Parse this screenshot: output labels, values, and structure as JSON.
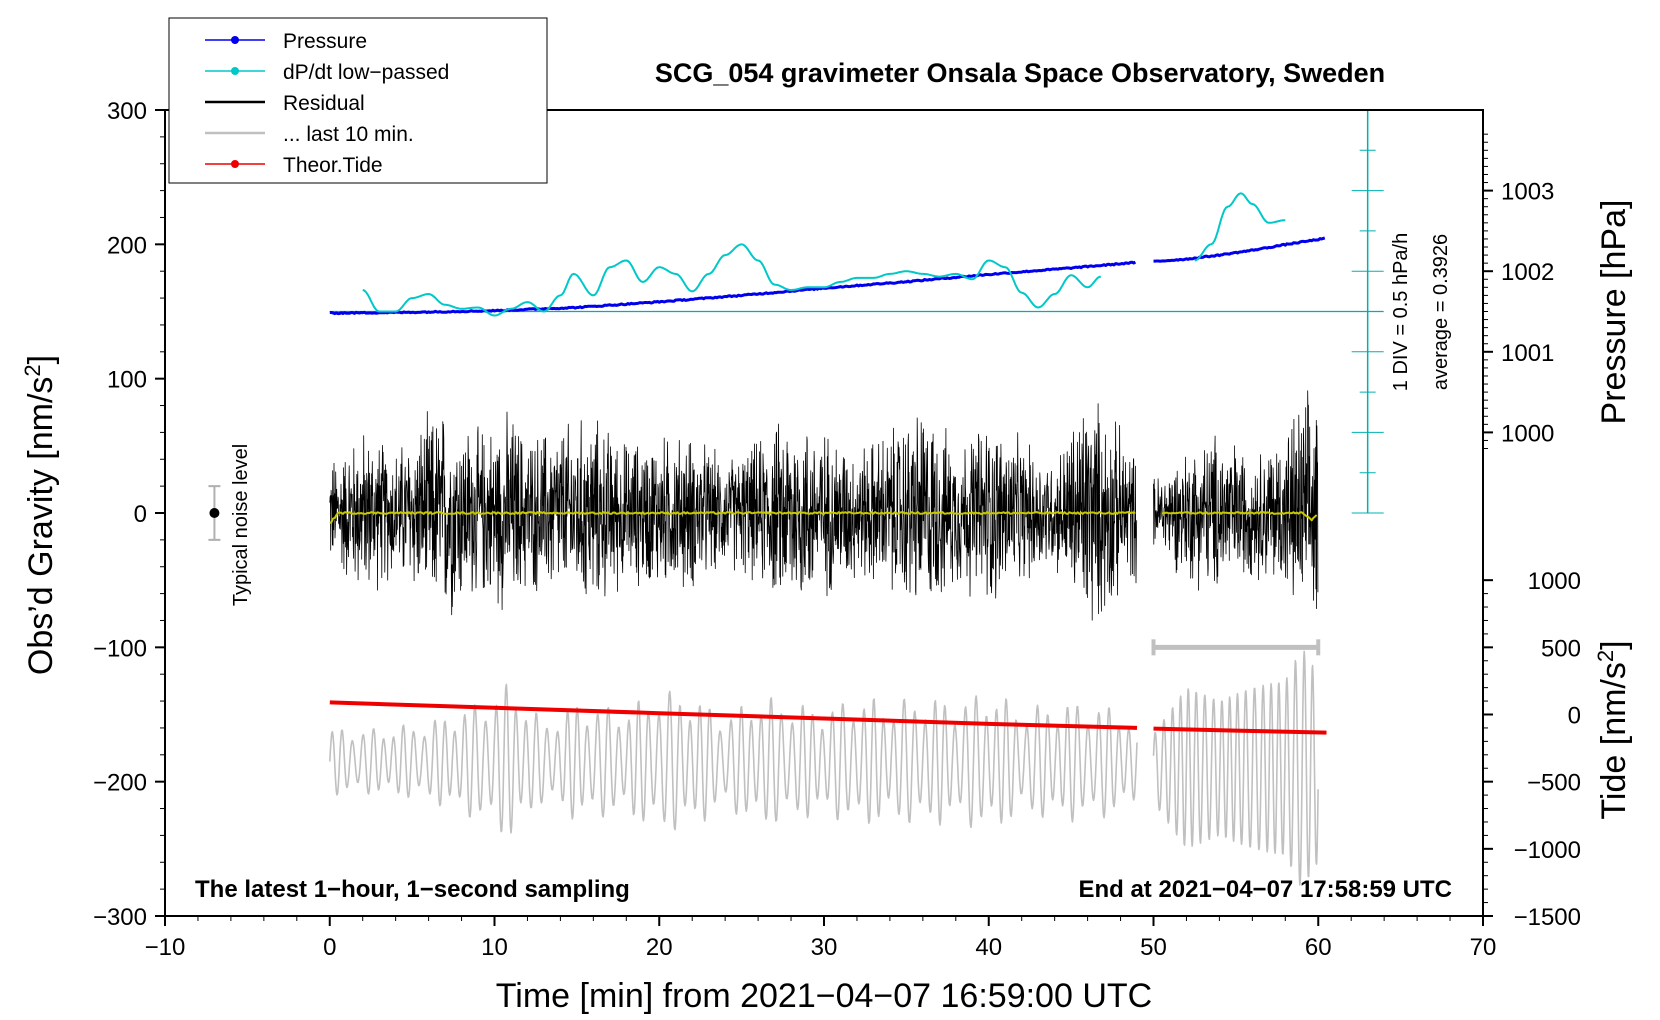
{
  "chart_data": {
    "type": "line",
    "title": "SCG_054 gravimeter Onsala Space Observatory, Sweden",
    "xlabel": "Time [min] from 2021−04−07 16:59:00 UTC",
    "ylabel_left": "Obs’d Gravity [nm/s²]",
    "ylabel_left_main": "Obs’d Gravity [nm/s",
    "ylabel_left_sup": "2",
    "ylabel_left_end": "]",
    "ylabel_pressure": "Pressure [hPa]",
    "ylabel_tide_main": "Tide [nm/s",
    "ylabel_tide_sup": "2",
    "ylabel_tide_end": "]",
    "xlim": [
      -10,
      70
    ],
    "ylim": [
      -300,
      300
    ],
    "x_ticks": [
      {
        "value": -10,
        "label": "−10"
      },
      {
        "value": 0,
        "label": "0"
      },
      {
        "value": 10,
        "label": "10"
      },
      {
        "value": 20,
        "label": "20"
      },
      {
        "value": 30,
        "label": "30"
      },
      {
        "value": 40,
        "label": "40"
      },
      {
        "value": 50,
        "label": "50"
      },
      {
        "value": 60,
        "label": "60"
      },
      {
        "value": 70,
        "label": "70"
      }
    ],
    "y_ticks": [
      {
        "value": 300,
        "label": "300"
      },
      {
        "value": 200,
        "label": "200"
      },
      {
        "value": 100,
        "label": "100"
      },
      {
        "value": 0,
        "label": "0"
      },
      {
        "value": -100,
        "label": "−100"
      },
      {
        "value": -200,
        "label": "−200"
      },
      {
        "value": -300,
        "label": "−300"
      }
    ],
    "pressure_axis": {
      "ticks": [
        {
          "value": 1003,
          "label": "1003"
        },
        {
          "value": 1002,
          "label": "1002"
        },
        {
          "value": 1001,
          "label": "1001"
        },
        {
          "value": 1000,
          "label": "1000"
        }
      ],
      "gravity_at_1000": 60,
      "gravity_per_hpa": 60
    },
    "tide_axis": {
      "ticks": [
        {
          "value": 1000,
          "label": "1000"
        },
        {
          "value": 500,
          "label": "500"
        },
        {
          "value": 0,
          "label": "0"
        },
        {
          "value": -500,
          "label": "−500"
        },
        {
          "value": -1000,
          "label": "−1000"
        },
        {
          "value": -1500,
          "label": "−1500"
        }
      ],
      "gravity_at_0": -150,
      "gravity_per_nm": 0.1
    },
    "series": [
      {
        "name": "Pressure",
        "color": "#0000ee",
        "unit": "hPa",
        "x": [
          0,
          5,
          10,
          15,
          20,
          25,
          30,
          35,
          40,
          45,
          49
        ],
        "values": [
          1001.48,
          1001.49,
          1001.51,
          1001.55,
          1001.62,
          1001.7,
          1001.79,
          1001.87,
          1001.96,
          1002.04,
          1002.11
        ]
      },
      {
        "name": "Pressure segment 2",
        "color": "#0000ee",
        "unit": "hPa",
        "x": [
          50,
          52,
          54,
          56,
          58,
          60.5
        ],
        "values": [
          1002.12,
          1002.15,
          1002.2,
          1002.26,
          1002.33,
          1002.41
        ]
      },
      {
        "name": "dP/dt low−passed",
        "color": "#00c8c8",
        "unit": "gravity-frame",
        "x": [
          2,
          3,
          4,
          5,
          6,
          7,
          8,
          9,
          10,
          11,
          12,
          13,
          14,
          14.8,
          16,
          17,
          18,
          19,
          20,
          21,
          22,
          23,
          24,
          25,
          26,
          27,
          28,
          29,
          30,
          31,
          32,
          33,
          34,
          35,
          36,
          37,
          38,
          39,
          40,
          41,
          42,
          43,
          44,
          45,
          46,
          46.8
        ],
        "values": [
          166,
          150,
          150,
          160,
          163,
          155,
          152,
          153,
          147,
          152,
          157,
          150,
          162,
          178,
          162,
          183,
          188,
          172,
          183,
          178,
          165,
          178,
          192,
          200,
          188,
          170,
          166,
          168,
          168,
          172,
          175,
          175,
          178,
          180,
          178,
          176,
          178,
          174,
          188,
          183,
          164,
          153,
          163,
          177,
          168,
          176
        ]
      },
      {
        "name": "dP/dt low−passed segment 2",
        "color": "#00c8c8",
        "unit": "gravity-frame",
        "x": [
          52.5,
          53.5,
          54.5,
          55.3,
          56,
          57,
          58
        ],
        "values": [
          188,
          200,
          228,
          238,
          230,
          216,
          218
        ]
      },
      {
        "name": "Residual",
        "color": "#000000",
        "unit": "nm/s²",
        "x": [
          0,
          49
        ],
        "segments": [
          [
            0,
            49
          ],
          [
            50,
            60
          ]
        ],
        "envelope": [
          [
            0,
            45
          ],
          [
            2,
            70
          ],
          [
            4,
            55
          ],
          [
            6,
            80
          ],
          [
            7,
            90
          ],
          [
            9,
            70
          ],
          [
            11,
            85
          ],
          [
            12,
            65
          ],
          [
            14,
            75
          ],
          [
            16,
            80
          ],
          [
            18,
            60
          ],
          [
            20,
            65
          ],
          [
            22,
            65
          ],
          [
            24,
            45
          ],
          [
            26,
            60
          ],
          [
            28,
            85
          ],
          [
            30,
            70
          ],
          [
            32,
            55
          ],
          [
            34,
            70
          ],
          [
            36,
            90
          ],
          [
            38,
            60
          ],
          [
            40,
            80
          ],
          [
            42,
            60
          ],
          [
            44,
            45
          ],
          [
            46,
            105
          ],
          [
            48,
            70
          ],
          [
            49,
            55
          ]
        ]
      },
      {
        "name": "Residual segment 2",
        "color": "#000000",
        "unit": "nm/s²",
        "envelope": [
          [
            50,
            30
          ],
          [
            52,
            55
          ],
          [
            54,
            70
          ],
          [
            56,
            50
          ],
          [
            58,
            70
          ],
          [
            59,
            95
          ],
          [
            60,
            100
          ]
        ]
      },
      {
        "name": "... last 10 min.",
        "color": "#c0c0c0",
        "unit": "nm/s²",
        "x_range": [
          50,
          60
        ],
        "level": -100
      },
      {
        "name": "Theor.Tide",
        "color": "#ee0000",
        "unit": "nm/s²",
        "x": [
          0,
          10,
          20,
          30,
          40,
          49
        ],
        "values": [
          90,
          50,
          10,
          -30,
          -70,
          -100
        ]
      },
      {
        "name": "Theor.Tide segment 2",
        "color": "#ee0000",
        "unit": "nm/s²",
        "x": [
          50,
          55,
          60.5
        ],
        "values": [
          -105,
          -120,
          -135
        ]
      },
      {
        "name": "Smoothed residual",
        "color": "#c8c800",
        "unit": "nm/s²",
        "x": [
          0,
          0.5,
          49,
          50.5,
          59,
          59.6,
          60
        ],
        "values": [
          -8,
          0,
          0,
          0,
          0,
          -5,
          0
        ]
      }
    ],
    "reference_scale": {
      "label_div": "1 DIV = 0.5 hPa/h",
      "label_avg": "average = 0.3926",
      "x": 63,
      "y_bottom": 0,
      "y_top": 300,
      "baseline_y": 150
    },
    "noise_bar": {
      "label": "Typical noise level",
      "x": -7,
      "center": 0,
      "half_range": 20
    },
    "legend": {
      "placement": "top-left",
      "entries": [
        {
          "label": "Pressure",
          "color": "#0000ee",
          "marker": "dot"
        },
        {
          "label": "dP/dt low−passed",
          "color": "#00c8c8",
          "marker": "dot"
        },
        {
          "label": "Residual",
          "color": "#000000",
          "marker": "none"
        },
        {
          "label": "... last 10 min.",
          "color": "#c0c0c0",
          "marker": "none"
        },
        {
          "label": "Theor.Tide",
          "color": "#ee0000",
          "marker": "dot"
        }
      ]
    },
    "annotations": {
      "bottom_left": "The latest 1−hour, 1−second sampling",
      "bottom_right": "End at 2021−04−07 17:58:59 UTC"
    }
  }
}
